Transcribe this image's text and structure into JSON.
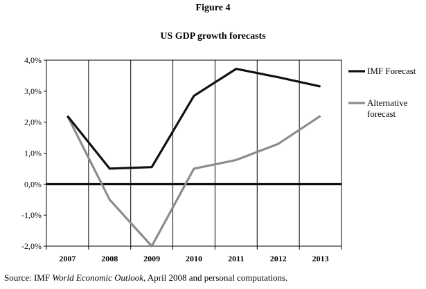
{
  "figure_label": "Figure 4",
  "source": {
    "prefix": "Source: IMF ",
    "italic": "World Economic Outlook",
    "suffix": ", April 2008 and personal computations."
  },
  "chart_data": {
    "type": "line",
    "title": "US GDP growth forecasts",
    "xlabel": "",
    "ylabel": "",
    "categories": [
      "2007",
      "2008",
      "2009",
      "2010",
      "2011",
      "2012",
      "2013"
    ],
    "ylim": [
      -2,
      4
    ],
    "yticks": [
      {
        "value": 4,
        "label": "4,0%"
      },
      {
        "value": 3,
        "label": "3,0%"
      },
      {
        "value": 2,
        "label": "2,0%"
      },
      {
        "value": 1,
        "label": "1,0%"
      },
      {
        "value": 0,
        "label": "0,0%"
      },
      {
        "value": -1,
        "label": "-1,0%"
      },
      {
        "value": -2,
        "label": "-2,0%"
      }
    ],
    "grid": {
      "vertical": true,
      "horizontal": false
    },
    "legend_placement": "right",
    "series": [
      {
        "name": "IMF Forecast",
        "color": "#111111",
        "values": [
          2.2,
          0.5,
          0.55,
          2.85,
          3.72,
          3.45,
          3.15
        ]
      },
      {
        "name": "Alternative forecast",
        "legend_lines": [
          "Alternative",
          "forecast"
        ],
        "color": "#8c8c8c",
        "values": [
          2.2,
          -0.5,
          -2.0,
          0.5,
          0.78,
          1.3,
          2.2
        ]
      }
    ]
  }
}
